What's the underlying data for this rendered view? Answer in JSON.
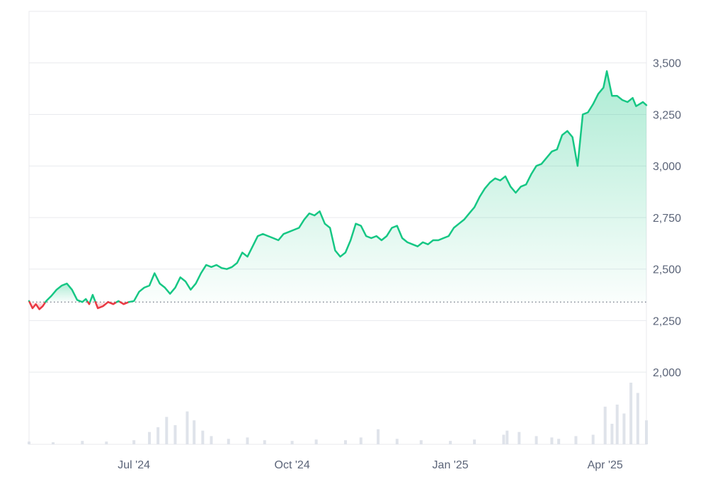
{
  "chart_data": {
    "type": "area",
    "xlim": [
      "2024-05-01",
      "2025-04-25"
    ],
    "ylim": [
      1650,
      3750
    ],
    "y_ticks": [
      2000,
      2250,
      2500,
      2750,
      3000,
      3250,
      3500
    ],
    "y_tick_labels": [
      "2,000",
      "2,250",
      "2,500",
      "2,750",
      "3,000",
      "3,250",
      "3,500"
    ],
    "x_ticks": [
      {
        "date": "2024-07-01",
        "label": "Jul '24"
      },
      {
        "date": "2024-10-01",
        "label": "Oct '24"
      },
      {
        "date": "2025-01-01",
        "label": "Jan '25"
      },
      {
        "date": "2025-04-01",
        "label": "Apr '25"
      }
    ],
    "baseline_value": 2340,
    "grid": true,
    "colors": {
      "above": "#16c784",
      "below": "#ea3943",
      "baseline": "#6b7280",
      "grid": "#e8eaee",
      "volume": "#dfe3ea"
    },
    "series": [
      {
        "x": [
          "2024-05-01",
          "2024-05-03",
          "2024-05-05",
          "2024-05-07",
          "2024-05-09",
          "2024-05-11",
          "2024-05-14",
          "2024-05-17",
          "2024-05-20",
          "2024-05-23",
          "2024-05-26",
          "2024-05-29",
          "2024-06-01",
          "2024-06-03",
          "2024-06-05",
          "2024-06-07",
          "2024-06-10",
          "2024-06-13",
          "2024-06-16",
          "2024-06-19",
          "2024-06-22",
          "2024-06-25",
          "2024-06-28",
          "2024-07-01",
          "2024-07-04",
          "2024-07-07",
          "2024-07-10",
          "2024-07-13",
          "2024-07-16",
          "2024-07-19",
          "2024-07-22",
          "2024-07-25",
          "2024-07-28",
          "2024-07-31",
          "2024-08-03",
          "2024-08-06",
          "2024-08-09",
          "2024-08-12",
          "2024-08-15",
          "2024-08-18",
          "2024-08-21",
          "2024-08-24",
          "2024-08-27",
          "2024-08-30",
          "2024-09-02",
          "2024-09-05",
          "2024-09-08",
          "2024-09-11",
          "2024-09-14",
          "2024-09-17",
          "2024-09-20",
          "2024-09-23",
          "2024-09-26",
          "2024-09-29",
          "2024-10-02",
          "2024-10-05",
          "2024-10-08",
          "2024-10-11",
          "2024-10-14",
          "2024-10-17",
          "2024-10-20",
          "2024-10-23",
          "2024-10-26",
          "2024-10-29",
          "2024-11-01",
          "2024-11-04",
          "2024-11-07",
          "2024-11-10",
          "2024-11-13",
          "2024-11-16",
          "2024-11-19",
          "2024-11-22",
          "2024-11-25",
          "2024-11-28",
          "2024-12-01",
          "2024-12-04",
          "2024-12-07",
          "2024-12-10",
          "2024-12-13",
          "2024-12-16",
          "2024-12-19",
          "2024-12-22",
          "2024-12-25",
          "2024-12-28",
          "2024-12-31",
          "2025-01-03",
          "2025-01-06",
          "2025-01-09",
          "2025-01-12",
          "2025-01-15",
          "2025-01-18",
          "2025-01-21",
          "2025-01-24",
          "2025-01-27",
          "2025-01-30",
          "2025-02-02",
          "2025-02-05",
          "2025-02-08",
          "2025-02-11",
          "2025-02-14",
          "2025-02-17",
          "2025-02-20",
          "2025-02-23",
          "2025-02-26",
          "2025-03-01",
          "2025-03-04",
          "2025-03-07",
          "2025-03-10",
          "2025-03-13",
          "2025-03-16",
          "2025-03-19",
          "2025-03-22",
          "2025-03-25",
          "2025-03-28",
          "2025-03-31",
          "2025-04-02",
          "2025-04-05",
          "2025-04-08",
          "2025-04-11",
          "2025-04-14",
          "2025-04-17",
          "2025-04-19",
          "2025-04-21",
          "2025-04-23",
          "2025-04-25"
        ],
        "values": [
          2345,
          2310,
          2330,
          2305,
          2320,
          2345,
          2370,
          2400,
          2420,
          2430,
          2400,
          2350,
          2340,
          2355,
          2330,
          2375,
          2310,
          2320,
          2340,
          2330,
          2345,
          2330,
          2340,
          2345,
          2390,
          2410,
          2420,
          2480,
          2430,
          2410,
          2380,
          2410,
          2460,
          2440,
          2400,
          2430,
          2480,
          2520,
          2510,
          2520,
          2505,
          2500,
          2510,
          2530,
          2580,
          2560,
          2610,
          2660,
          2670,
          2660,
          2650,
          2640,
          2670,
          2680,
          2690,
          2700,
          2740,
          2770,
          2760,
          2780,
          2720,
          2700,
          2590,
          2560,
          2580,
          2640,
          2720,
          2710,
          2660,
          2650,
          2660,
          2640,
          2660,
          2700,
          2710,
          2650,
          2630,
          2620,
          2610,
          2630,
          2620,
          2640,
          2640,
          2650,
          2660,
          2700,
          2720,
          2740,
          2770,
          2800,
          2850,
          2890,
          2920,
          2940,
          2930,
          2950,
          2900,
          2870,
          2900,
          2910,
          2960,
          3000,
          3010,
          3040,
          3070,
          3080,
          3150,
          3170,
          3140,
          3000,
          3250,
          3260,
          3300,
          3350,
          3380,
          3460,
          3340,
          3340,
          3320,
          3310,
          3330,
          3290,
          3300,
          3310,
          3295
        ]
      }
    ],
    "volume": {
      "x": [
        "2024-05-01",
        "2024-05-15",
        "2024-06-01",
        "2024-06-15",
        "2024-07-01",
        "2024-07-10",
        "2024-07-15",
        "2024-07-20",
        "2024-07-25",
        "2024-08-01",
        "2024-08-05",
        "2024-08-10",
        "2024-08-15",
        "2024-08-25",
        "2024-09-05",
        "2024-09-15",
        "2024-10-01",
        "2024-10-15",
        "2024-11-01",
        "2024-11-10",
        "2024-11-20",
        "2024-12-01",
        "2024-12-15",
        "2025-01-01",
        "2025-01-15",
        "2025-02-01",
        "2025-02-03",
        "2025-02-10",
        "2025-02-20",
        "2025-03-01",
        "2025-03-05",
        "2025-03-15",
        "2025-03-25",
        "2025-04-01",
        "2025-04-05",
        "2025-04-08",
        "2025-04-12",
        "2025-04-16",
        "2025-04-20",
        "2025-04-25"
      ],
      "values": [
        4,
        3,
        5,
        4,
        6,
        18,
        25,
        40,
        28,
        48,
        35,
        20,
        12,
        8,
        10,
        6,
        5,
        7,
        6,
        10,
        22,
        8,
        6,
        5,
        7,
        14,
        20,
        18,
        12,
        10,
        8,
        12,
        14,
        55,
        30,
        58,
        45,
        90,
        75,
        35
      ]
    }
  }
}
